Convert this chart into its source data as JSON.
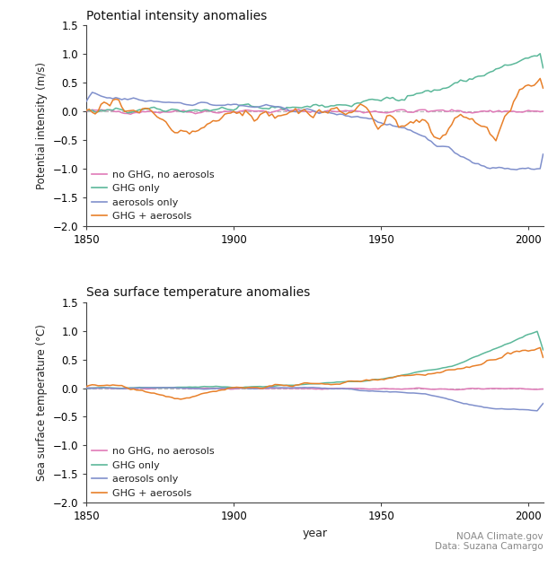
{
  "title1": "Potential intensity anomalies",
  "title2": "Sea surface temperature anomalies",
  "ylabel1": "Potential intensity (m/s)",
  "ylabel2": "Sea surface temperature (°C)",
  "xlabel": "year",
  "ylim": [
    -2,
    1.5
  ],
  "yticks": [
    -2,
    -1.5,
    -1,
    -0.5,
    0,
    0.5,
    1,
    1.5
  ],
  "xlim": [
    1850,
    2005
  ],
  "xticks": [
    1850,
    1900,
    1950,
    2000
  ],
  "legend_labels": [
    "no GHG, no aerosols",
    "GHG only",
    "aerosols only",
    "GHG + aerosols"
  ],
  "colors": {
    "no_ghg": "#e07ab8",
    "ghg_only": "#5cb89a",
    "aerosols_only": "#8090cc",
    "ghg_aerosols": "#e8802a"
  },
  "credit1": "NOAA Climate.gov",
  "credit2": "Data: Suzana Camargo",
  "background_color": "#ffffff"
}
